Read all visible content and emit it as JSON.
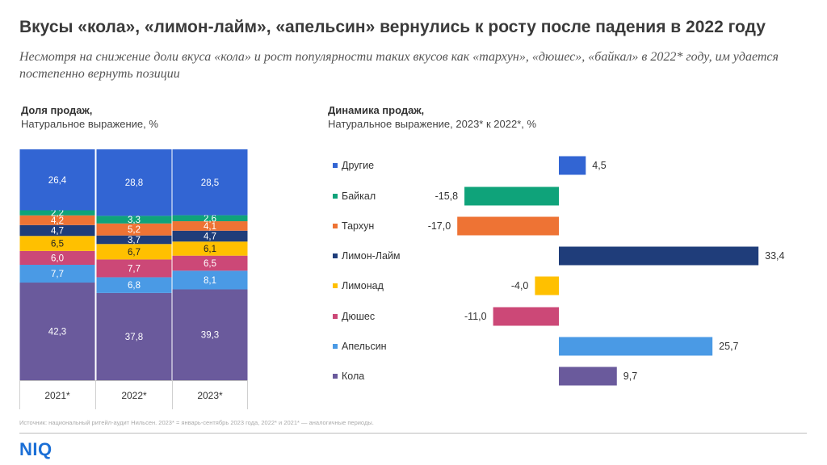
{
  "title": "Вкусы «кола», «лимон-лайм», «апельсин» вернулись к росту после падения в 2022 году",
  "subtitle": "Несмотря на снижение доли вкуса «кола» и рост популярности таких вкусов как «тархун», «дюшес», «байкал» в 2022* году, им удается постепенно вернуть позиции",
  "left_panel": {
    "title": "Доля продаж,",
    "subtitle": "Натуральное выражение, %"
  },
  "right_panel": {
    "title": "Динамика продаж,",
    "subtitle": "Натуральное выражение, 2023* к 2022*, %"
  },
  "source": "Источник: национальный ритейл-аудит Нильсен. 2023* = январь-сентябрь 2023 года, 2022* и 2021* — аналогичные периоды.",
  "logo": "NIQ",
  "chart_data": [
    {
      "type": "bar",
      "stacked": true,
      "title": "Доля продаж,",
      "subtitle": "Натуральное выражение, %",
      "categories": [
        "2021*",
        "2022*",
        "2023*"
      ],
      "series": [
        {
          "name": "Кола",
          "color": "#6a5a9c",
          "values": [
            42.3,
            37.8,
            39.3
          ],
          "labels": [
            "42,3",
            "37,8",
            "39,3"
          ]
        },
        {
          "name": "Апельсин",
          "color": "#4a9ae5",
          "values": [
            7.7,
            6.8,
            8.1
          ],
          "labels": [
            "7,7",
            "6,8",
            "8,1"
          ]
        },
        {
          "name": "Дюшес",
          "color": "#cc4877",
          "values": [
            6.0,
            7.7,
            6.5
          ],
          "labels": [
            "6,0",
            "7,7",
            "6,5"
          ]
        },
        {
          "name": "Лимонад",
          "color": "#ffc000",
          "values": [
            6.5,
            6.7,
            6.1
          ],
          "labels": [
            "6,5",
            "6,7",
            "6,1"
          ]
        },
        {
          "name": "Лимон-Лайм",
          "color": "#1f3d7a",
          "values": [
            4.7,
            3.7,
            4.7
          ],
          "labels": [
            "4,7",
            "3,7",
            "4,7"
          ]
        },
        {
          "name": "Тархун",
          "color": "#ee7334",
          "values": [
            4.2,
            5.2,
            4.1
          ],
          "labels": [
            "4,2",
            "5,2",
            "4,1"
          ]
        },
        {
          "name": "Байкал",
          "color": "#0fa37a",
          "values": [
            2.2,
            3.3,
            2.6
          ],
          "labels": [
            "2,2",
            "3,3",
            "2,6"
          ]
        },
        {
          "name": "Другие",
          "color": "#3265d3",
          "values": [
            26.4,
            28.8,
            28.5
          ],
          "labels": [
            "26,4",
            "28,8",
            "28,5"
          ]
        }
      ]
    },
    {
      "type": "bar",
      "orientation": "horizontal",
      "title": "Динамика продаж,",
      "subtitle": "Натуральное выражение, 2023* к 2022*, %",
      "categories": [
        "Другие",
        "Байкал",
        "Тархун",
        "Лимон-Лайм",
        "Лимонад",
        "Дюшес",
        "Апельсин",
        "Кола"
      ],
      "values": [
        4.5,
        -15.8,
        -17.0,
        33.4,
        -4.0,
        -11.0,
        25.7,
        9.7
      ],
      "labels": [
        "4,5",
        "-15,8",
        "-17,0",
        "33,4",
        "-4,0",
        "-11,0",
        "25,7",
        "9,7"
      ],
      "colors": [
        "#3265d3",
        "#0fa37a",
        "#ee7334",
        "#1f3d7a",
        "#ffc000",
        "#cc4877",
        "#4a9ae5",
        "#6a5a9c"
      ]
    }
  ]
}
